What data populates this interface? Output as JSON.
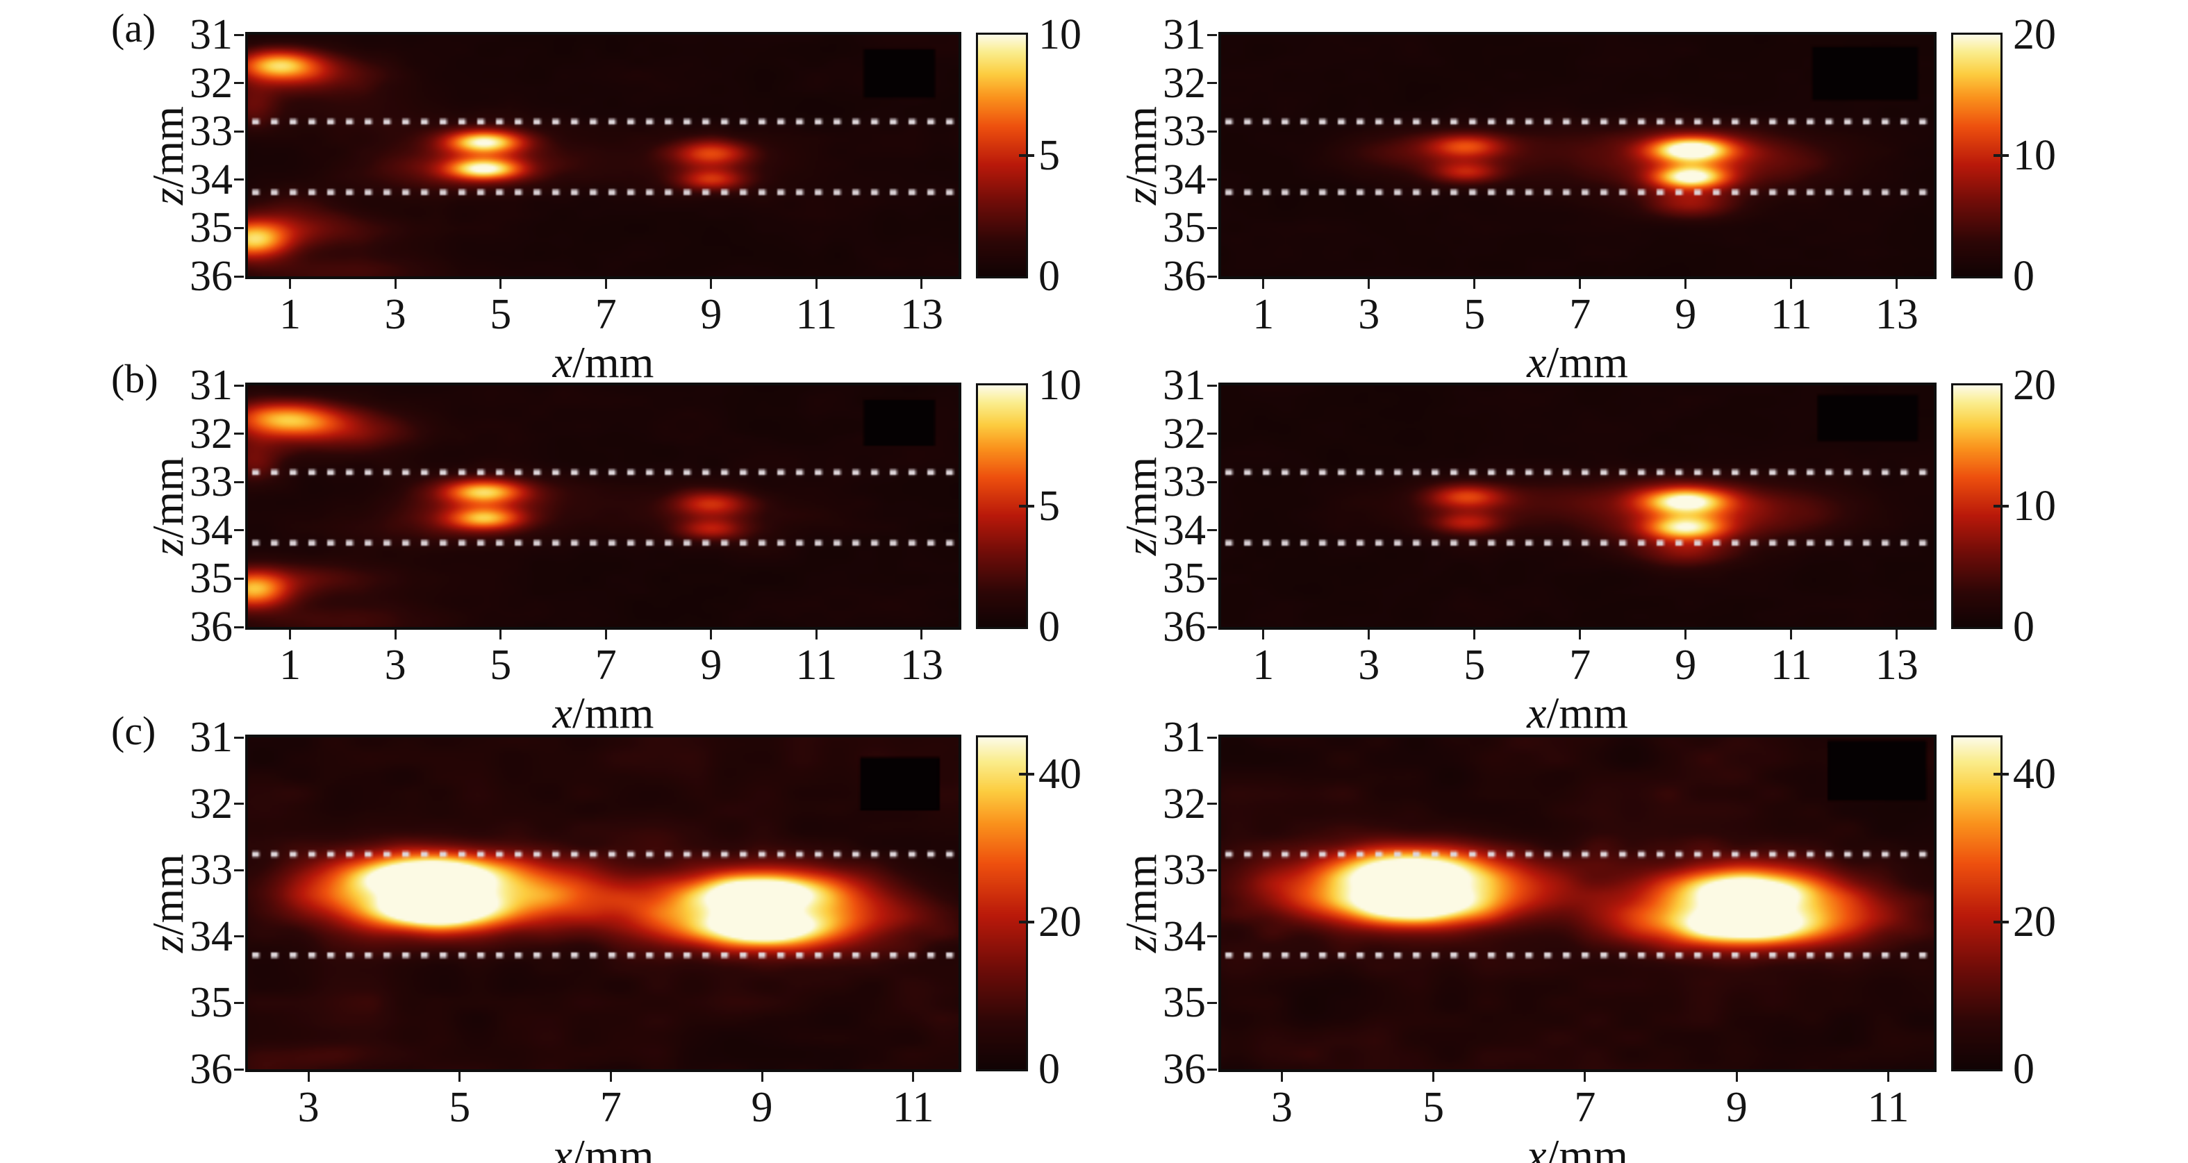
{
  "figure": {
    "background": "#ffffff"
  },
  "rows": [
    {
      "tag": "(a)"
    },
    {
      "tag": "(b)"
    },
    {
      "tag": "(c)"
    }
  ],
  "labels": {
    "x_var": "x",
    "x_unit": "/mm",
    "z_var": "z",
    "z_unit": "/mm"
  },
  "colors": {
    "colormap_stops": [
      [
        0.0,
        18,
        3,
        4
      ],
      [
        0.14,
        45,
        6,
        6
      ],
      [
        0.3,
        110,
        12,
        8
      ],
      [
        0.46,
        185,
        25,
        10
      ],
      [
        0.62,
        238,
        80,
        14
      ],
      [
        0.74,
        250,
        145,
        28
      ],
      [
        0.84,
        252,
        205,
        64
      ],
      [
        0.93,
        250,
        237,
        140
      ],
      [
        1.0,
        252,
        250,
        228
      ]
    ],
    "dotted_line": "#ded6da",
    "dark_patch": "#050102",
    "axis": "#0e0e0e",
    "text": "#111111"
  },
  "chart_data": {
    "type": "heatmap",
    "units": "mm",
    "description": "Six photoacoustic/ultrasound reconstruction heatmaps (rows a,b,c; two columns), hot colormap, dotted reference lines, x/mm vs z/mm",
    "panels": [
      {
        "id": "a-left",
        "row_tag": "(a)",
        "x_range": [
          0.2,
          13.7
        ],
        "z_range": [
          31,
          36
        ],
        "x_ticks": [
          1,
          3,
          5,
          7,
          9,
          11,
          13
        ],
        "z_ticks": [
          31,
          32,
          33,
          34,
          35,
          36
        ],
        "colorbar": {
          "vmin": 0,
          "vmax": 10,
          "ticks": [
            0,
            5,
            10
          ]
        },
        "dotted_lines_z": [
          32.8,
          34.26
        ],
        "dark_patch": {
          "x": [
            11.9,
            13.25
          ],
          "z": [
            31.3,
            32.3
          ]
        },
        "noise_amp": 0.055,
        "seed": 11,
        "blobs": [
          [
            0.75,
            31.62,
            0.55,
            0.22,
            0.62
          ],
          [
            1.3,
            31.8,
            1.0,
            0.32,
            0.3
          ],
          [
            0.3,
            32.5,
            0.35,
            0.35,
            0.22
          ],
          [
            2.2,
            32.6,
            1.2,
            0.35,
            0.07
          ],
          [
            4.7,
            33.22,
            0.5,
            0.17,
            0.8
          ],
          [
            4.7,
            33.78,
            0.5,
            0.16,
            0.78
          ],
          [
            4.7,
            33.5,
            1.3,
            0.45,
            0.22
          ],
          [
            3.4,
            33.9,
            1.2,
            0.3,
            0.1
          ],
          [
            9.0,
            33.45,
            0.5,
            0.19,
            0.45
          ],
          [
            9.0,
            34.0,
            0.45,
            0.16,
            0.4
          ],
          [
            9.0,
            33.7,
            1.2,
            0.4,
            0.13
          ],
          [
            0.3,
            35.25,
            0.5,
            0.28,
            0.75
          ],
          [
            1.6,
            35.05,
            1.2,
            0.28,
            0.2
          ],
          [
            2.0,
            35.9,
            1.4,
            0.3,
            0.16
          ],
          [
            0.9,
            34.65,
            0.8,
            0.35,
            0.12
          ]
        ]
      },
      {
        "id": "a-right",
        "row_tag": "(a)",
        "x_range": [
          0.2,
          13.7
        ],
        "z_range": [
          31,
          36
        ],
        "x_ticks": [
          1,
          3,
          5,
          7,
          9,
          11,
          13
        ],
        "z_ticks": [
          31,
          32,
          33,
          34,
          35,
          36
        ],
        "colorbar": {
          "vmin": 0,
          "vmax": 20,
          "ticks": [
            0,
            10,
            20
          ]
        },
        "dotted_lines_z": [
          32.8,
          34.26
        ],
        "dark_patch": {
          "x": [
            11.4,
            13.4
          ],
          "z": [
            31.25,
            32.35
          ]
        },
        "noise_amp": 0.045,
        "seed": 12,
        "blobs": [
          [
            4.85,
            33.3,
            0.5,
            0.18,
            0.42
          ],
          [
            4.85,
            33.85,
            0.45,
            0.16,
            0.34
          ],
          [
            4.85,
            33.55,
            1.2,
            0.4,
            0.14
          ],
          [
            3.6,
            33.4,
            0.9,
            0.3,
            0.12
          ],
          [
            9.1,
            33.38,
            0.55,
            0.19,
            0.88
          ],
          [
            9.1,
            33.95,
            0.5,
            0.17,
            0.82
          ],
          [
            9.1,
            33.65,
            1.5,
            0.5,
            0.26
          ],
          [
            9.1,
            34.5,
            0.6,
            0.22,
            0.3
          ],
          [
            10.6,
            33.5,
            1.2,
            0.35,
            0.1
          ],
          [
            7.2,
            33.2,
            1.5,
            0.3,
            0.07
          ]
        ]
      },
      {
        "id": "b-left",
        "row_tag": "(b)",
        "x_range": [
          0.2,
          13.7
        ],
        "z_range": [
          31,
          36
        ],
        "x_ticks": [
          1,
          3,
          5,
          7,
          9,
          11,
          13
        ],
        "z_ticks": [
          31,
          32,
          33,
          34,
          35,
          36
        ],
        "colorbar": {
          "vmin": 0,
          "vmax": 10,
          "ticks": [
            0,
            5,
            10
          ]
        },
        "dotted_lines_z": [
          32.8,
          34.26
        ],
        "dark_patch": {
          "x": [
            11.9,
            13.25
          ],
          "z": [
            31.3,
            32.25
          ]
        },
        "noise_amp": 0.055,
        "seed": 13,
        "blobs": [
          [
            0.9,
            31.68,
            0.75,
            0.26,
            0.68
          ],
          [
            1.9,
            31.95,
            1.1,
            0.3,
            0.3
          ],
          [
            0.3,
            32.55,
            0.4,
            0.35,
            0.25
          ],
          [
            4.7,
            33.2,
            0.55,
            0.18,
            0.7
          ],
          [
            4.7,
            33.75,
            0.5,
            0.17,
            0.62
          ],
          [
            4.7,
            33.5,
            1.3,
            0.45,
            0.2
          ],
          [
            9.0,
            33.45,
            0.5,
            0.19,
            0.4
          ],
          [
            9.0,
            33.98,
            0.45,
            0.16,
            0.34
          ],
          [
            9.0,
            33.7,
            1.2,
            0.4,
            0.12
          ],
          [
            0.3,
            35.22,
            0.5,
            0.28,
            0.72
          ],
          [
            1.6,
            35.0,
            1.2,
            0.28,
            0.18
          ],
          [
            2.0,
            35.85,
            1.4,
            0.3,
            0.15
          ],
          [
            3.2,
            34.0,
            1.4,
            0.3,
            0.08
          ]
        ]
      },
      {
        "id": "b-right",
        "row_tag": "(b)",
        "x_range": [
          0.2,
          13.7
        ],
        "z_range": [
          31,
          36
        ],
        "x_ticks": [
          1,
          3,
          5,
          7,
          9,
          11,
          13
        ],
        "z_ticks": [
          31,
          32,
          33,
          34,
          35,
          36
        ],
        "colorbar": {
          "vmin": 0,
          "vmax": 20,
          "ticks": [
            0,
            10,
            20
          ]
        },
        "dotted_lines_z": [
          32.8,
          34.26
        ],
        "dark_patch": {
          "x": [
            11.5,
            13.4
          ],
          "z": [
            31.2,
            32.15
          ]
        },
        "noise_amp": 0.045,
        "seed": 14,
        "blobs": [
          [
            4.85,
            33.3,
            0.5,
            0.18,
            0.42
          ],
          [
            4.85,
            33.85,
            0.45,
            0.16,
            0.33
          ],
          [
            4.85,
            33.55,
            1.2,
            0.4,
            0.13
          ],
          [
            9.0,
            33.4,
            0.6,
            0.2,
            0.78
          ],
          [
            9.0,
            33.95,
            0.55,
            0.18,
            0.72
          ],
          [
            9.0,
            33.65,
            1.6,
            0.5,
            0.26
          ],
          [
            9.0,
            34.45,
            0.65,
            0.22,
            0.26
          ],
          [
            7.0,
            33.3,
            1.5,
            0.3,
            0.08
          ],
          [
            10.8,
            33.6,
            1.2,
            0.35,
            0.1
          ]
        ]
      },
      {
        "id": "c-left",
        "row_tag": "(c)",
        "x_range": [
          2.2,
          11.6
        ],
        "z_range": [
          31,
          36
        ],
        "x_ticks": [
          3,
          5,
          7,
          9,
          11
        ],
        "z_ticks": [
          31,
          32,
          33,
          34,
          35,
          36
        ],
        "colorbar": {
          "vmin": 0,
          "vmax": 45,
          "ticks": [
            0,
            20,
            40
          ]
        },
        "dotted_lines_z": [
          32.76,
          34.28
        ],
        "dark_patch": {
          "x": [
            10.3,
            11.35
          ],
          "z": [
            31.3,
            32.1
          ]
        },
        "noise_amp": 0.16,
        "seed": 15,
        "blobs": [
          [
            4.65,
            33.05,
            0.65,
            0.21,
            0.92
          ],
          [
            4.7,
            33.62,
            0.6,
            0.19,
            0.88
          ],
          [
            4.7,
            33.33,
            1.3,
            0.5,
            0.42
          ],
          [
            3.55,
            33.3,
            0.7,
            0.28,
            0.3
          ],
          [
            5.85,
            33.35,
            0.7,
            0.28,
            0.28
          ],
          [
            9.0,
            33.33,
            0.65,
            0.21,
            0.9
          ],
          [
            9.05,
            33.9,
            0.6,
            0.19,
            0.86
          ],
          [
            9.0,
            33.6,
            1.3,
            0.5,
            0.4
          ],
          [
            7.95,
            33.7,
            0.6,
            0.26,
            0.26
          ],
          [
            10.15,
            33.7,
            0.6,
            0.26,
            0.24
          ],
          [
            6.9,
            33.4,
            0.8,
            0.3,
            0.15
          ],
          [
            3.0,
            35.9,
            1.0,
            0.3,
            0.1
          ]
        ]
      },
      {
        "id": "c-right",
        "row_tag": "(c)",
        "x_range": [
          2.2,
          11.6
        ],
        "z_range": [
          31,
          36
        ],
        "x_ticks": [
          3,
          5,
          7,
          9,
          11
        ],
        "z_ticks": [
          31,
          32,
          33,
          34,
          35,
          36
        ],
        "colorbar": {
          "vmin": 0,
          "vmax": 45,
          "ticks": [
            0,
            20,
            40
          ]
        },
        "dotted_lines_z": [
          32.76,
          34.28
        ],
        "dark_patch": {
          "x": [
            10.2,
            11.5
          ],
          "z": [
            31.05,
            31.95
          ]
        },
        "noise_amp": 0.16,
        "seed": 16,
        "blobs": [
          [
            4.7,
            33.0,
            0.7,
            0.22,
            0.88
          ],
          [
            4.75,
            33.55,
            0.65,
            0.2,
            0.82
          ],
          [
            4.7,
            33.28,
            1.3,
            0.5,
            0.4
          ],
          [
            3.55,
            33.35,
            0.7,
            0.28,
            0.28
          ],
          [
            5.9,
            33.3,
            0.7,
            0.28,
            0.26
          ],
          [
            9.15,
            33.3,
            0.7,
            0.22,
            0.84
          ],
          [
            9.15,
            33.85,
            0.65,
            0.2,
            0.8
          ],
          [
            9.15,
            33.57,
            1.3,
            0.5,
            0.38
          ],
          [
            8.0,
            33.75,
            0.6,
            0.26,
            0.24
          ],
          [
            10.3,
            33.7,
            0.6,
            0.26,
            0.22
          ]
        ]
      }
    ]
  }
}
